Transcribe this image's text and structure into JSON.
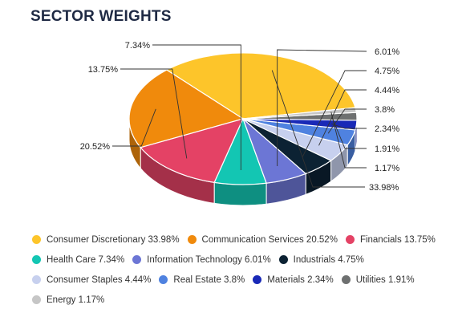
{
  "title": "SECTOR WEIGHTS",
  "chart_data": {
    "type": "pie",
    "style": "3d",
    "title": "SECTOR WEIGHTS",
    "slices": [
      {
        "name": "Consumer Discretionary",
        "value": 33.98,
        "label": "33.98%",
        "color": "#fdc52a"
      },
      {
        "name": "Communication Services",
        "value": 20.52,
        "label": "20.52%",
        "color": "#f08a0c"
      },
      {
        "name": "Financials",
        "value": 13.75,
        "label": "13.75%",
        "color": "#e44265"
      },
      {
        "name": "Health Care",
        "value": 7.34,
        "label": "7.34%",
        "color": "#13c6b3"
      },
      {
        "name": "Information Technology",
        "value": 6.01,
        "label": "6.01%",
        "color": "#6c76d5"
      },
      {
        "name": "Industrials",
        "value": 4.75,
        "label": "4.75%",
        "color": "#0c2233"
      },
      {
        "name": "Consumer Staples",
        "value": 4.44,
        "label": "4.44%",
        "color": "#c7d0ee"
      },
      {
        "name": "Real Estate",
        "value": 3.8,
        "label": "3.8%",
        "color": "#4f82e0"
      },
      {
        "name": "Materials",
        "value": 2.34,
        "label": "2.34%",
        "color": "#1929b7"
      },
      {
        "name": "Utilities",
        "value": 1.91,
        "label": "1.91%",
        "color": "#6e7070"
      },
      {
        "name": "Energy",
        "value": 1.17,
        "label": "1.17%",
        "color": "#c6c6c6"
      }
    ],
    "legend": {
      "placement": "bottom",
      "items": [
        "Consumer Discretionary 33.98%",
        "Communication Services 20.52%",
        "Financials 13.75%",
        "Health Care 7.34%",
        "Information Technology 6.01%",
        "Industrials 4.75%",
        "Consumer Staples 4.44%",
        "Real Estate 3.8%",
        "Materials 2.34%",
        "Utilities 1.91%",
        "Energy 1.17%"
      ]
    }
  }
}
